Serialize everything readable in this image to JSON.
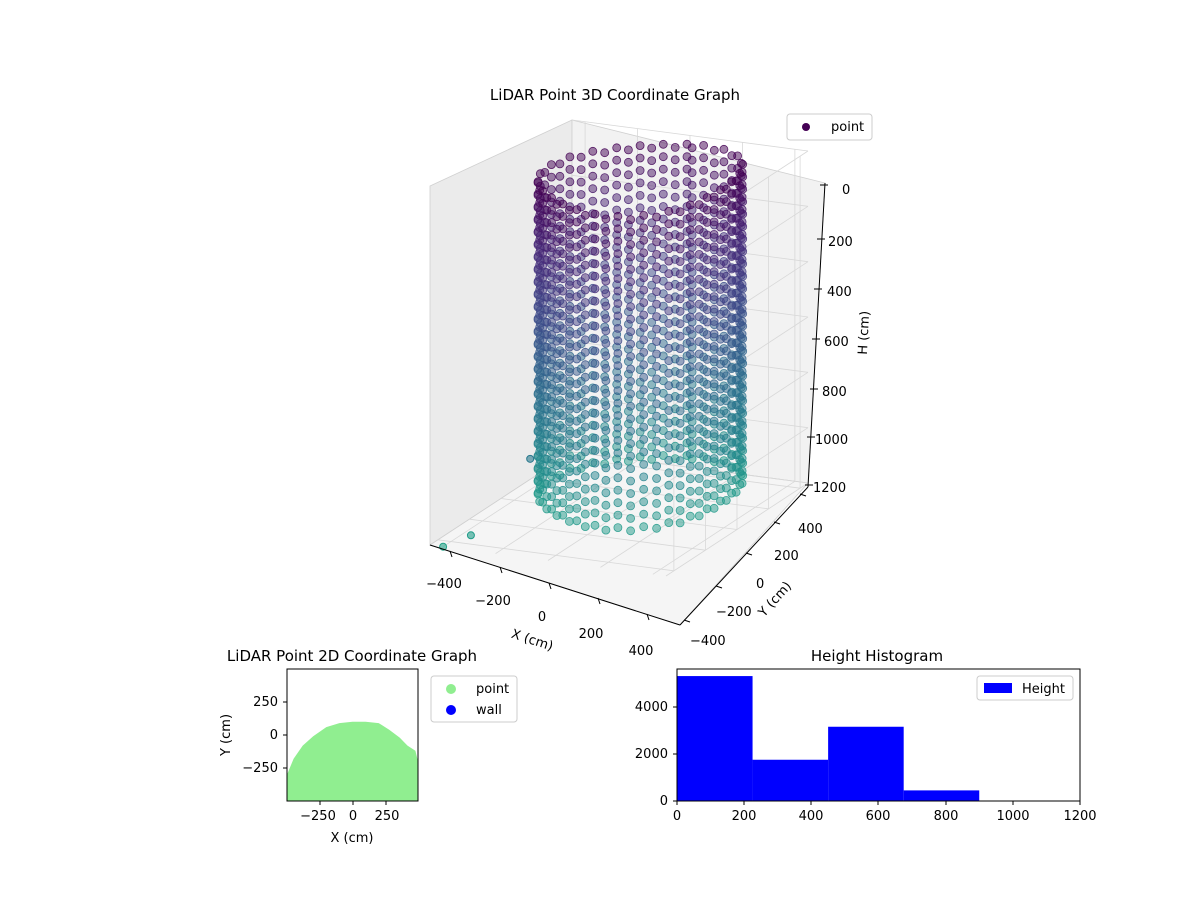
{
  "chart_data": [
    {
      "type": "scatter3d",
      "title": "LiDAR Point 3D Coordinate Graph",
      "xlabel": "X (cm)",
      "ylabel": "Y (cm)",
      "zlabel": "H (cm)",
      "xticks": [
        "−400",
        "−200",
        "0",
        "200",
        "400"
      ],
      "yticks": [
        "−400",
        "−200",
        "0",
        "200",
        "400"
      ],
      "zticks": [
        "0",
        "200",
        "400",
        "600",
        "800",
        "1000",
        "1200"
      ],
      "xlim": [
        -450,
        450
      ],
      "ylim": [
        -450,
        450
      ],
      "zlim": [
        0,
        1200
      ],
      "z_inverted": true,
      "legend": [
        {
          "label": "point",
          "color": "#440154"
        }
      ],
      "legend_position": "top-right",
      "colormap": "viridis",
      "shape": {
        "type": "cylinder",
        "center_x": 50,
        "center_y": 50,
        "radius": 330,
        "height_min": 0,
        "height_max": 1150
      },
      "outliers": [
        {
          "x": -430,
          "y": -80,
          "h": 850
        },
        {
          "x": -440,
          "y": -300,
          "h": 1150
        },
        {
          "x": -450,
          "y": -400,
          "h": 1200
        }
      ]
    },
    {
      "type": "scatter",
      "title": "LiDAR Point 2D Coordinate Graph",
      "xlabel": "X (cm)",
      "ylabel": "Y (cm)",
      "xticks": [
        "−250",
        "0",
        "250"
      ],
      "yticks": [
        "−250",
        "0",
        "250"
      ],
      "xlim": [
        -500,
        500
      ],
      "ylim": [
        -500,
        500
      ],
      "legend_position": "right",
      "series": [
        {
          "name": "point",
          "color": "#90ee90",
          "region": "filled half-disc, y ≤ 100",
          "boundary_points": [
            [
              -500,
              -300
            ],
            [
              -450,
              -180
            ],
            [
              -380,
              -80
            ],
            [
              -300,
              -10
            ],
            [
              -200,
              60
            ],
            [
              -100,
              90
            ],
            [
              0,
              100
            ],
            [
              100,
              100
            ],
            [
              200,
              90
            ],
            [
              280,
              40
            ],
            [
              360,
              -20
            ],
            [
              420,
              -80
            ],
            [
              480,
              -120
            ],
            [
              500,
              -200
            ],
            [
              500,
              -500
            ],
            [
              -500,
              -500
            ]
          ]
        },
        {
          "name": "wall",
          "color": "#0000ff",
          "points": []
        }
      ]
    },
    {
      "type": "bar",
      "title": "Height Histogram",
      "xlabel": "",
      "ylabel": "",
      "xlim": [
        0,
        1200
      ],
      "ylim": [
        0,
        5600
      ],
      "xticks": [
        "0",
        "200",
        "400",
        "600",
        "800",
        "1000",
        "1200"
      ],
      "yticks": [
        "0",
        "2000",
        "4000"
      ],
      "legend": [
        {
          "label": "Height",
          "color": "#0000ff"
        }
      ],
      "legend_position": "top-right",
      "bins": [
        {
          "x0": 0,
          "x1": 225,
          "count": 5300
        },
        {
          "x0": 225,
          "x1": 450,
          "count": 1750
        },
        {
          "x0": 450,
          "x1": 675,
          "count": 3150
        },
        {
          "x0": 675,
          "x1": 900,
          "count": 450
        },
        {
          "x0": 900,
          "x1": 1125,
          "count": 0
        }
      ]
    }
  ]
}
